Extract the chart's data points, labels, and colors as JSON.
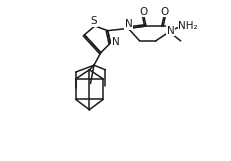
{
  "bg_color": "#ffffff",
  "line_color": "#1a1a1a",
  "lw": 1.1,
  "fs": 7.5,
  "figsize": [
    2.31,
    1.61
  ],
  "dpi": 100,
  "xlim": [
    0,
    10
  ],
  "ylim": [
    0,
    7
  ]
}
